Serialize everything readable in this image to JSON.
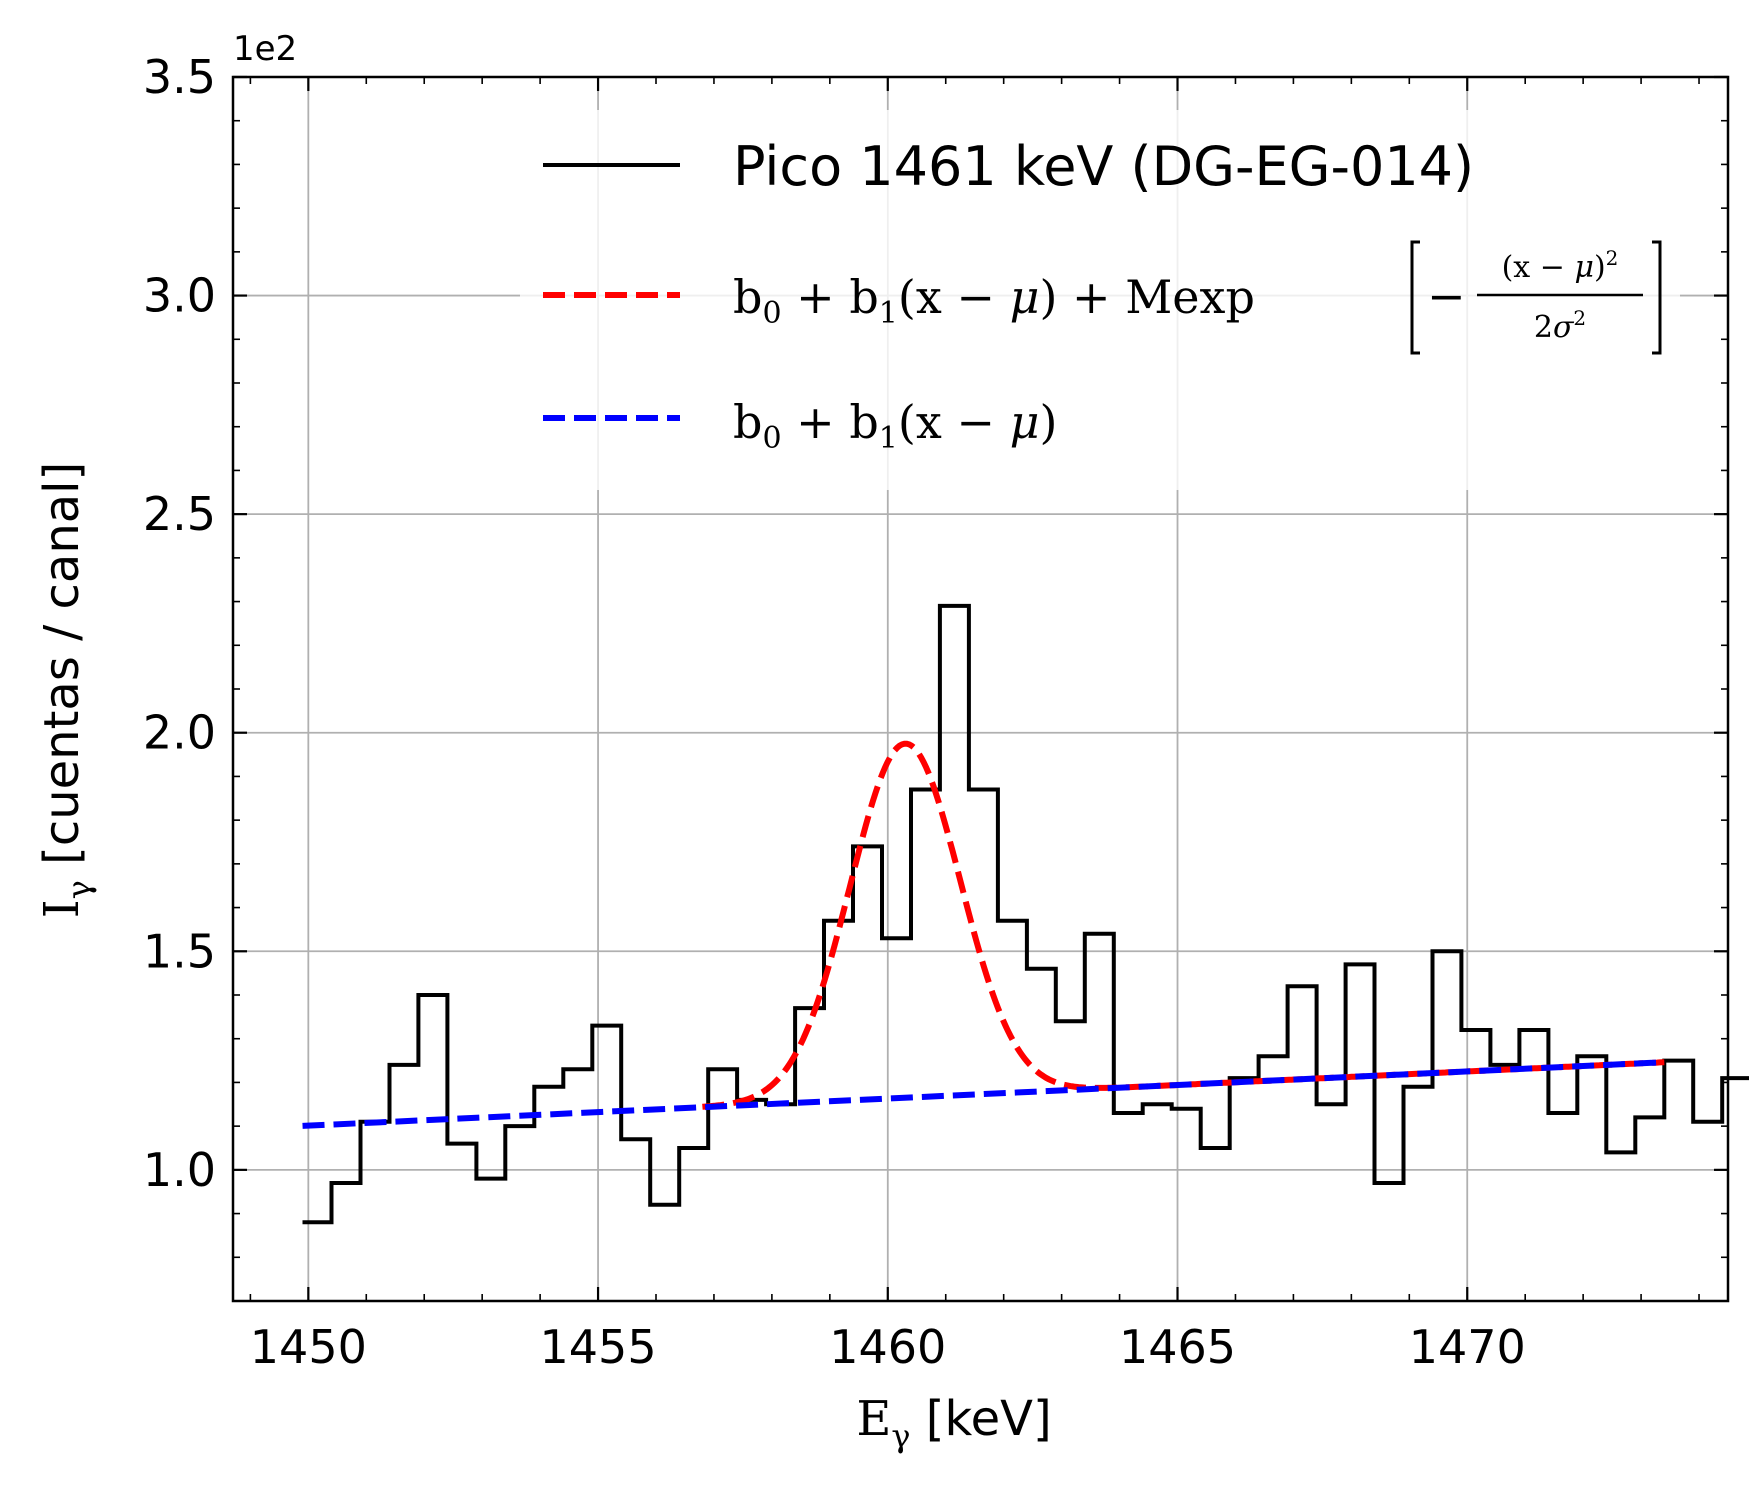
{
  "chart_data": {
    "type": "line",
    "xlim": [
      1448.7,
      1474.5
    ],
    "ylim": [
      0.7,
      3.5
    ],
    "x_ticks": [
      1450,
      1455,
      1460,
      1465,
      1470
    ],
    "x_tick_labels": [
      "1450",
      "1455",
      "1460",
      "1465",
      "1470"
    ],
    "y_ticks": [
      1.0,
      1.5,
      2.0,
      2.5,
      3.0,
      3.5
    ],
    "y_tick_labels": [
      "1.0",
      "1.5",
      "2.0",
      "2.5",
      "3.0",
      "3.5"
    ],
    "y_offset_label": "1e2",
    "xlabel": {
      "symbol": "E",
      "subscript": "γ",
      "rest": " [keV]"
    },
    "ylabel": {
      "symbol": "I",
      "subscript": "γ",
      "rest": " [cuentas / canal]"
    },
    "grid": true,
    "legend_position": "top-right",
    "histogram": {
      "name": "Pico 1461 keV (DG-EG-014)",
      "color": "#000000",
      "bin_width": 0.5,
      "x_start": 1449.9,
      "values": [
        0.88,
        0.97,
        1.11,
        1.24,
        1.4,
        1.06,
        0.98,
        1.1,
        1.19,
        1.23,
        1.33,
        1.07,
        0.92,
        1.05,
        1.23,
        1.16,
        1.15,
        1.37,
        1.57,
        1.74,
        1.53,
        1.87,
        2.29,
        1.87,
        1.57,
        1.46,
        1.34,
        1.54,
        1.13,
        1.15,
        1.14,
        1.05,
        1.21,
        1.26,
        1.42,
        1.15,
        1.47,
        0.97,
        1.19,
        1.5,
        1.32,
        1.24,
        1.32,
        1.13,
        1.26,
        1.04,
        1.12,
        1.25,
        1.11,
        1.21
      ]
    },
    "fit": {
      "name": "b0 + b1(x − μ) + Mexp[−(x − μ)²/2σ²]",
      "color": "#ff0000",
      "b0": 1.165,
      "b1": 0.0062,
      "mu": 1460.3,
      "M": 0.81,
      "sigma": 0.95,
      "x_range": [
        1456.8,
        1473.4
      ]
    },
    "background": {
      "name": "b0 + b1(x − μ)",
      "color": "#0000ff",
      "x_range": [
        1449.9,
        1473.4
      ]
    }
  }
}
